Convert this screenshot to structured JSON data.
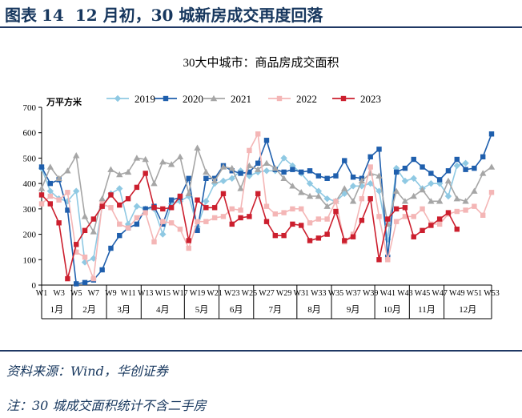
{
  "figure": {
    "label": "图表",
    "number": "14",
    "caption": "12 月初，30 城新房成交再度回落"
  },
  "source_note": "资料来源：Wind，华创证券",
  "footnote": "注：30 城成交面积统计不含二手房",
  "chart_data": {
    "type": "line",
    "title": "30大中城市：商品房成交面积",
    "unit_label": "万平方米",
    "ylim": [
      0,
      700
    ],
    "yticks": [
      0,
      100,
      200,
      300,
      400,
      500,
      600,
      700
    ],
    "grid": false,
    "legend_position": "top",
    "week_labels": [
      "W1",
      "W3",
      "W5",
      "W7",
      "W9",
      "W11",
      "W13",
      "W15",
      "W17",
      "W19",
      "W21",
      "W23",
      "W25",
      "W27",
      "W29",
      "W31",
      "W33",
      "W35",
      "W37",
      "W39",
      "W41",
      "W43",
      "W45",
      "W47",
      "W49",
      "W51",
      "W53"
    ],
    "month_labels": [
      "1月",
      "2月",
      "3月",
      "4月",
      "5月",
      "6月",
      "7月",
      "8月",
      "9月",
      "10月",
      "11月",
      "12月"
    ],
    "x": [
      1,
      2,
      3,
      4,
      5,
      6,
      7,
      8,
      9,
      10,
      11,
      12,
      13,
      14,
      15,
      16,
      17,
      18,
      19,
      20,
      21,
      22,
      23,
      24,
      25,
      26,
      27,
      28,
      29,
      30,
      31,
      32,
      33,
      34,
      35,
      36,
      37,
      38,
      39,
      40,
      41,
      42,
      43,
      44,
      45,
      46,
      47,
      48,
      49,
      50,
      51,
      52,
      53
    ],
    "series": [
      {
        "name": "2019",
        "color": "#8fc9e3",
        "marker": "diamond",
        "values": [
          460,
          370,
          340,
          330,
          370,
          90,
          105,
          310,
          360,
          380,
          240,
          310,
          300,
          300,
          200,
          320,
          330,
          350,
          230,
          330,
          400,
          410,
          420,
          450,
          430,
          445,
          450,
          450,
          500,
          470,
          440,
          400,
          370,
          340,
          330,
          360,
          390,
          390,
          400,
          370,
          180,
          460,
          410,
          420,
          380,
          400,
          400,
          350,
          470,
          480,
          null,
          null,
          null
        ]
      },
      {
        "name": "2020",
        "color": "#1f5fad",
        "marker": "square",
        "values": [
          465,
          400,
          415,
          295,
          5,
          10,
          20,
          60,
          145,
          195,
          225,
          240,
          300,
          310,
          240,
          335,
          345,
          420,
          215,
          420,
          420,
          470,
          450,
          440,
          445,
          480,
          570,
          455,
          445,
          455,
          445,
          450,
          430,
          420,
          430,
          490,
          425,
          420,
          505,
          535,
          110,
          445,
          460,
          495,
          465,
          440,
          415,
          450,
          495,
          455,
          460,
          505,
          595
        ]
      },
      {
        "name": "2021",
        "color": "#a6a6a6",
        "marker": "triangle",
        "values": [
          380,
          465,
          420,
          450,
          510,
          270,
          210,
          340,
          455,
          435,
          445,
          500,
          495,
          400,
          485,
          475,
          505,
          360,
          540,
          445,
          410,
          465,
          460,
          380,
          470,
          455,
          480,
          460,
          420,
          390,
          365,
          350,
          350,
          310,
          330,
          380,
          330,
          410,
          440,
          430,
          240,
          370,
          330,
          350,
          375,
          330,
          330,
          410,
          340,
          330,
          370,
          440,
          465
        ]
      },
      {
        "name": "2022",
        "color": "#f4b6b6",
        "marker": "square",
        "values": [
          320,
          350,
          335,
          365,
          130,
          110,
          25,
          320,
          305,
          240,
          225,
          265,
          285,
          170,
          250,
          245,
          220,
          145,
          250,
          250,
          265,
          270,
          300,
          295,
          530,
          595,
          310,
          280,
          285,
          300,
          300,
          245,
          260,
          260,
          330,
          170,
          200,
          340,
          465,
          270,
          100,
          250,
          270,
          270,
          300,
          240,
          240,
          280,
          290,
          295,
          310,
          275,
          365
        ]
      },
      {
        "name": "2023",
        "color": "#cc1f2e",
        "marker": "square",
        "values": [
          355,
          320,
          245,
          25,
          160,
          215,
          260,
          310,
          355,
          315,
          340,
          385,
          440,
          305,
          300,
          305,
          350,
          175,
          335,
          305,
          305,
          360,
          240,
          265,
          270,
          360,
          250,
          195,
          195,
          240,
          235,
          175,
          185,
          200,
          290,
          175,
          190,
          255,
          340,
          100,
          260,
          300,
          305,
          190,
          215,
          235,
          260,
          285,
          220,
          null,
          null,
          null,
          null
        ]
      }
    ]
  }
}
